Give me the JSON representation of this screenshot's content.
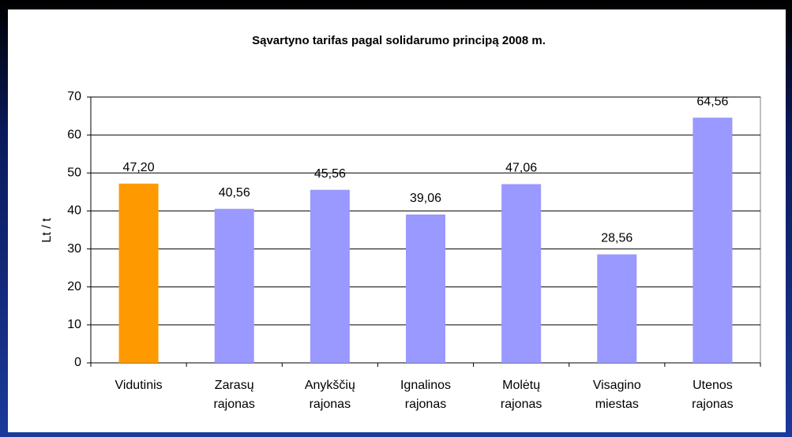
{
  "chart_data": {
    "type": "bar",
    "title": "Sąvartyno tarifas pagal solidarumo principą 2008 m.",
    "y_label": "Lt / t",
    "categories": [
      "Vidutinis",
      "Zarasų rajonas",
      "Anykščių rajonas",
      "Ignalinos rajonas",
      "Molėtų rajonas",
      "Visagino miestas",
      "Utenos rajonas"
    ],
    "values": [
      47.2,
      40.56,
      45.56,
      39.06,
      47.06,
      28.56,
      64.56
    ],
    "value_labels": [
      "47,20",
      "40,56",
      "45,56",
      "39,06",
      "47,06",
      "28,56",
      "64,56"
    ],
    "colors": [
      "#ff9900",
      "#9999ff",
      "#9999ff",
      "#9999ff",
      "#9999ff",
      "#9999ff",
      "#9999ff"
    ],
    "ylim": [
      0,
      70
    ],
    "yticks": [
      0,
      10,
      20,
      30,
      40,
      50,
      60,
      70
    ],
    "grid": true
  }
}
